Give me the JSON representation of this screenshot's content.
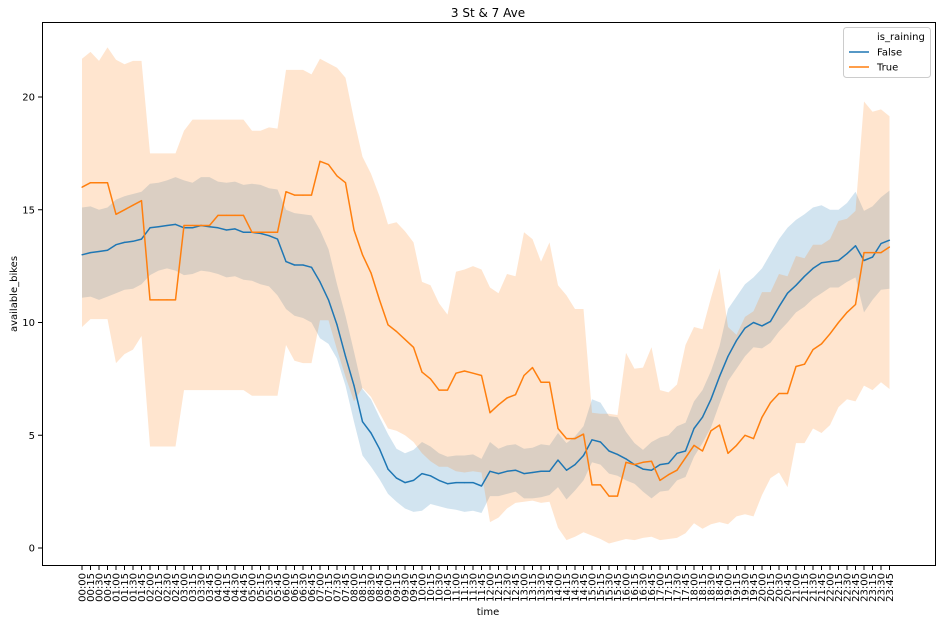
{
  "chart_data": {
    "type": "line",
    "title": "3 St & 7 Ave",
    "xlabel": "time",
    "ylabel": "available_bikes",
    "ylim": [
      -0.9,
      23.3
    ],
    "yticks": [
      0,
      5,
      10,
      15,
      20
    ],
    "grid": false,
    "legend": {
      "title": "is_raining",
      "placement": "top-right"
    },
    "categories": [
      "00:00",
      "00:15",
      "00:30",
      "00:45",
      "01:00",
      "01:15",
      "01:30",
      "01:45",
      "02:00",
      "02:15",
      "02:30",
      "02:45",
      "03:00",
      "03:15",
      "03:30",
      "03:45",
      "04:00",
      "04:15",
      "04:30",
      "04:45",
      "05:00",
      "05:15",
      "05:30",
      "05:45",
      "06:00",
      "06:15",
      "06:30",
      "06:45",
      "07:00",
      "07:15",
      "07:30",
      "07:45",
      "08:00",
      "08:15",
      "08:30",
      "08:45",
      "09:00",
      "09:15",
      "09:30",
      "09:45",
      "10:00",
      "10:15",
      "10:30",
      "10:45",
      "11:00",
      "11:15",
      "11:30",
      "11:45",
      "12:00",
      "12:15",
      "12:30",
      "12:45",
      "13:00",
      "13:15",
      "13:30",
      "13:45",
      "14:00",
      "14:15",
      "14:30",
      "14:45",
      "15:00",
      "15:15",
      "15:30",
      "15:45",
      "16:00",
      "16:15",
      "16:30",
      "16:45",
      "17:00",
      "17:15",
      "17:30",
      "17:45",
      "18:00",
      "18:15",
      "18:30",
      "18:45",
      "19:00",
      "19:15",
      "19:30",
      "19:45",
      "20:00",
      "20:15",
      "20:30",
      "20:45",
      "21:00",
      "21:15",
      "21:30",
      "21:45",
      "22:00",
      "22:15",
      "22:30",
      "22:45",
      "23:00",
      "23:15",
      "23:30",
      "23:45"
    ],
    "series": [
      {
        "name": "False",
        "color": "#1f77b4",
        "values": [
          13.0,
          13.1,
          13.15,
          13.2,
          13.45,
          13.55,
          13.6,
          13.7,
          14.2,
          14.25,
          14.3,
          14.35,
          14.2,
          14.2,
          14.3,
          14.25,
          14.2,
          14.1,
          14.15,
          14.0,
          14.0,
          13.95,
          13.85,
          13.7,
          12.7,
          12.55,
          12.55,
          12.45,
          11.8,
          11.0,
          9.9,
          8.5,
          7.2,
          5.6,
          5.1,
          4.4,
          3.5,
          3.1,
          2.9,
          3.0,
          3.3,
          3.2,
          3.0,
          2.85,
          2.9,
          2.9,
          2.9,
          2.75,
          3.4,
          3.3,
          3.4,
          3.45,
          3.3,
          3.35,
          3.4,
          3.4,
          3.9,
          3.45,
          3.7,
          4.1,
          4.8,
          4.7,
          4.3,
          4.15,
          3.95,
          3.7,
          3.5,
          3.45,
          3.7,
          3.75,
          4.2,
          4.3,
          5.3,
          5.8,
          6.6,
          7.6,
          8.5,
          9.2,
          9.75,
          10.0,
          9.85,
          10.05,
          10.7,
          11.3,
          11.65,
          12.05,
          12.4,
          12.65,
          12.7,
          12.75,
          13.05,
          13.4,
          12.75,
          12.9,
          13.5,
          13.65
        ],
        "ci_lower": [
          11.1,
          11.15,
          11.0,
          11.15,
          11.3,
          11.45,
          11.5,
          11.7,
          12.1,
          12.3,
          12.4,
          12.3,
          12.1,
          12.15,
          12.3,
          12.25,
          12.15,
          12.0,
          12.05,
          11.9,
          11.85,
          11.7,
          11.6,
          11.2,
          10.6,
          10.3,
          10.2,
          10.0,
          9.3,
          9.05,
          8.4,
          7.2,
          5.6,
          4.1,
          3.6,
          3.05,
          2.4,
          2.05,
          1.75,
          1.6,
          1.65,
          1.95,
          1.85,
          1.75,
          1.7,
          1.6,
          1.65,
          1.55,
          2.3,
          2.3,
          2.4,
          2.5,
          2.2,
          2.2,
          2.25,
          2.35,
          2.7,
          2.15,
          2.55,
          3.0,
          3.8,
          3.7,
          3.3,
          3.2,
          3.0,
          2.85,
          2.5,
          2.2,
          2.5,
          2.55,
          3.0,
          3.15,
          4.05,
          4.65,
          5.35,
          6.4,
          7.4,
          7.95,
          8.5,
          8.9,
          8.85,
          9.1,
          9.6,
          10.0,
          10.45,
          10.7,
          11.05,
          11.3,
          11.55,
          11.55,
          11.8,
          12.0,
          10.45,
          11.0,
          11.45,
          11.5
        ],
        "ci_upper": [
          15.1,
          15.15,
          15.0,
          15.1,
          15.45,
          15.6,
          15.7,
          15.8,
          16.15,
          16.2,
          16.3,
          16.45,
          16.3,
          16.2,
          16.45,
          16.45,
          16.25,
          16.2,
          16.25,
          16.1,
          16.15,
          16.1,
          15.95,
          15.9,
          15.0,
          14.85,
          14.8,
          14.75,
          14.1,
          13.25,
          11.7,
          10.3,
          8.7,
          7.05,
          6.6,
          5.8,
          5.05,
          4.4,
          4.2,
          4.35,
          4.7,
          4.5,
          4.2,
          4.05,
          4.1,
          4.1,
          4.15,
          3.95,
          4.7,
          4.4,
          4.55,
          4.6,
          4.4,
          4.45,
          4.6,
          4.55,
          5.1,
          4.65,
          4.95,
          5.4,
          6.6,
          6.45,
          5.85,
          5.8,
          5.15,
          4.65,
          4.35,
          4.7,
          4.9,
          5.0,
          5.4,
          5.55,
          6.5,
          7.0,
          7.85,
          8.95,
          10.6,
          11.15,
          11.7,
          12.0,
          12.4,
          13.05,
          13.7,
          14.2,
          14.55,
          14.8,
          15.1,
          15.2,
          15.0,
          15.0,
          15.3,
          15.8,
          14.95,
          15.15,
          15.55,
          15.85
        ]
      },
      {
        "name": "True",
        "color": "#ff7f0e",
        "values": [
          16.0,
          16.2,
          16.2,
          16.2,
          14.8,
          15.0,
          15.2,
          15.4,
          11.0,
          11.0,
          11.0,
          11.0,
          14.3,
          14.3,
          14.3,
          14.3,
          14.75,
          14.75,
          14.75,
          14.75,
          14.0,
          14.0,
          14.0,
          14.0,
          15.8,
          15.65,
          15.65,
          15.65,
          17.15,
          17.0,
          16.5,
          16.2,
          14.1,
          13.0,
          12.2,
          11.0,
          9.9,
          9.6,
          9.25,
          8.9,
          7.8,
          7.5,
          7.0,
          7.0,
          7.75,
          7.85,
          7.75,
          7.65,
          6.0,
          6.35,
          6.65,
          6.8,
          7.65,
          8.0,
          7.35,
          7.35,
          5.3,
          4.85,
          4.85,
          5.05,
          2.8,
          2.8,
          2.3,
          2.3,
          3.8,
          3.7,
          3.8,
          3.85,
          3.0,
          3.25,
          3.45,
          4.0,
          4.55,
          4.3,
          5.2,
          5.45,
          4.2,
          4.55,
          5.0,
          4.85,
          5.8,
          6.45,
          6.85,
          6.85,
          8.05,
          8.15,
          8.8,
          9.05,
          9.5,
          10.0,
          10.45,
          10.8,
          13.1,
          13.1,
          13.1,
          13.35
        ],
        "ci_lower": [
          9.8,
          10.15,
          10.15,
          10.15,
          8.2,
          8.6,
          8.8,
          9.4,
          4.5,
          4.5,
          4.5,
          4.5,
          7.0,
          7.0,
          7.0,
          7.0,
          7.0,
          7.0,
          7.0,
          7.0,
          6.75,
          6.75,
          6.75,
          6.75,
          9.0,
          8.3,
          8.2,
          8.2,
          10.1,
          10.1,
          8.8,
          7.6,
          6.5,
          7.1,
          6.7,
          6.0,
          5.3,
          5.2,
          5.0,
          4.7,
          4.2,
          3.85,
          3.6,
          3.6,
          3.4,
          3.35,
          3.4,
          3.35,
          1.15,
          1.35,
          1.75,
          2.0,
          2.05,
          2.1,
          2.0,
          2.05,
          0.9,
          0.35,
          0.5,
          0.7,
          0.55,
          0.4,
          0.2,
          0.3,
          0.4,
          0.35,
          0.45,
          0.5,
          0.35,
          0.4,
          0.45,
          0.65,
          1.1,
          0.85,
          1.05,
          1.15,
          1.05,
          1.4,
          1.5,
          1.4,
          2.35,
          3.1,
          3.35,
          2.7,
          4.65,
          4.65,
          5.3,
          5.1,
          5.45,
          6.25,
          6.6,
          6.5,
          7.2,
          7.0,
          7.35,
          7.05
        ],
        "ci_upper": [
          21.7,
          22.0,
          21.6,
          22.2,
          21.65,
          21.45,
          21.6,
          21.6,
          17.5,
          17.5,
          17.5,
          17.5,
          18.5,
          19.0,
          19.0,
          19.0,
          19.0,
          19.0,
          19.0,
          19.0,
          18.5,
          18.5,
          18.65,
          18.6,
          21.2,
          21.2,
          21.2,
          21.0,
          21.7,
          21.5,
          21.3,
          20.85,
          19.0,
          17.35,
          16.6,
          15.6,
          14.35,
          14.45,
          14.05,
          13.55,
          11.8,
          11.65,
          10.85,
          10.35,
          12.25,
          12.35,
          12.5,
          12.35,
          11.55,
          11.3,
          12.15,
          12.05,
          14.0,
          13.7,
          12.7,
          13.55,
          11.65,
          11.2,
          10.6,
          10.6,
          6.0,
          5.95,
          5.95,
          5.9,
          8.65,
          7.95,
          8.0,
          8.9,
          7.0,
          6.9,
          7.25,
          9.0,
          9.8,
          9.7,
          11.1,
          12.4,
          9.8,
          9.45,
          10.25,
          10.5,
          11.35,
          11.35,
          12.15,
          12.05,
          12.95,
          12.85,
          13.45,
          13.45,
          13.7,
          14.5,
          14.6,
          14.95,
          19.8,
          19.35,
          19.45,
          19.15
        ]
      }
    ]
  }
}
